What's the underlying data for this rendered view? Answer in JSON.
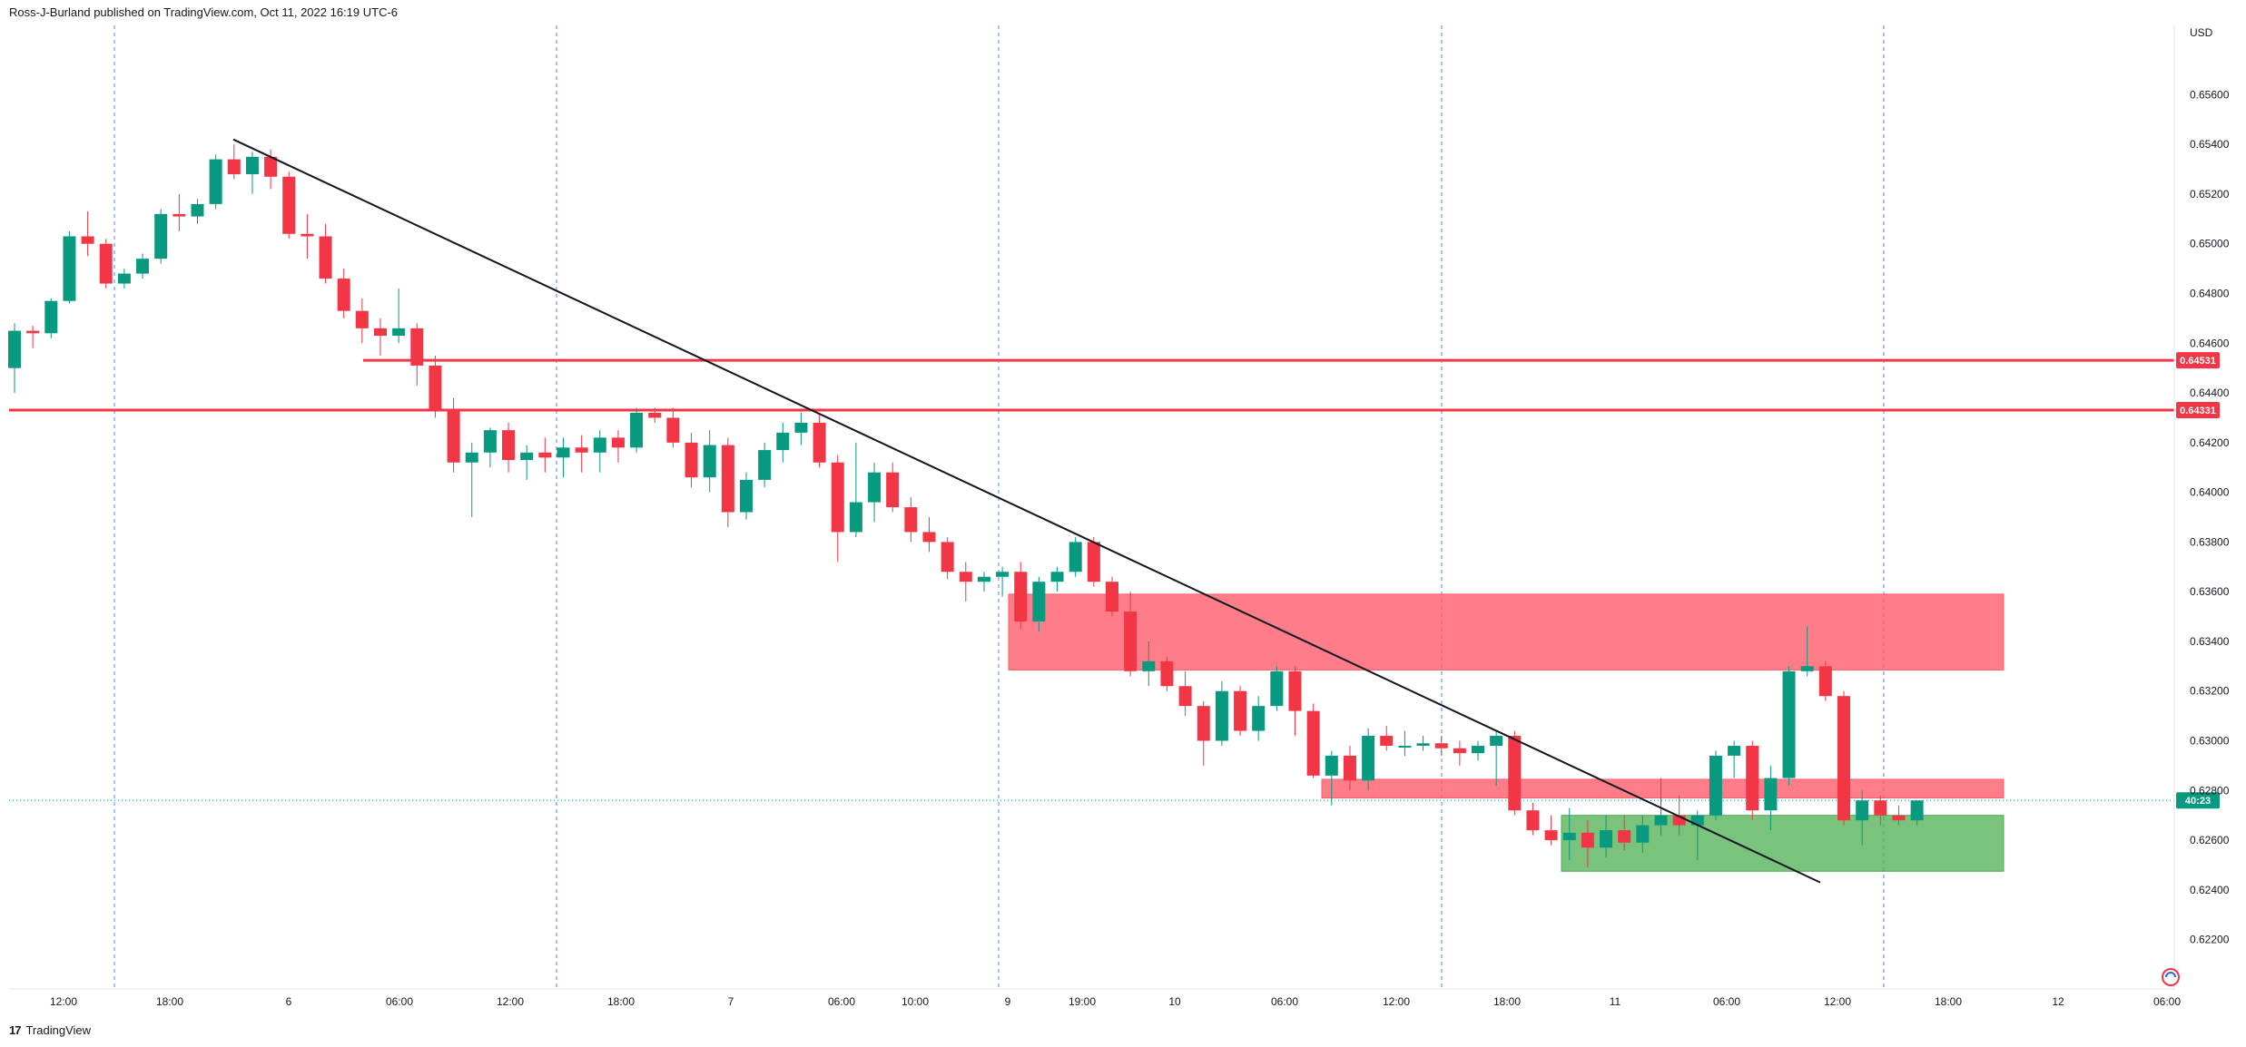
{
  "header": {
    "published": "Ross-J-Burland published on TradingView.com, Oct 11, 2022 16:19 UTC-6"
  },
  "footer": {
    "brand": "TradingView",
    "logo_icon": "tradingview-logo-icon"
  },
  "settings_icon": "chart-settings-icon",
  "colors": {
    "up": "#089981",
    "down": "#f23645",
    "axis_text": "#131722",
    "session_line": "#2962ff",
    "trendline": "#131722",
    "level": "#f23645",
    "supply_zone": "#ff5c6c",
    "demand_zone": "#4caf50"
  },
  "chart_data": {
    "type": "candlestick",
    "currency": "USD",
    "ylim": [
      0.621,
      0.657
    ],
    "y_ticks": [
      "0.65600",
      "0.65400",
      "0.65200",
      "0.65000",
      "0.64800",
      "0.64600",
      "0.64400",
      "0.64200",
      "0.64000",
      "0.63800",
      "0.63600",
      "0.63400",
      "0.63200",
      "0.63000",
      "0.62800",
      "0.62600",
      "0.62400",
      "0.62200"
    ],
    "x_ticks": [
      "12:00",
      "18:00",
      "6",
      "06:00",
      "12:00",
      "18:00",
      "7",
      "06:00",
      "10:00",
      "9",
      "19:00",
      "10",
      "06:00",
      "12:00",
      "18:00",
      "11",
      "06:00",
      "12:00",
      "18:00",
      "12",
      "06:00"
    ],
    "horizontal_levels": [
      {
        "label": "0.64531",
        "value": 0.64531
      },
      {
        "label": "0.64331",
        "value": 0.64331
      }
    ],
    "current_price": {
      "value": 0.6276,
      "label": "40:23"
    },
    "zones": [
      {
        "kind": "supply",
        "y_top": 0.6359,
        "y_bottom": 0.63285
      },
      {
        "kind": "resistance",
        "y_top": 0.62845,
        "y_bottom": 0.6277
      },
      {
        "kind": "demand",
        "y_top": 0.627,
        "y_bottom": 0.62475
      }
    ],
    "trendline": {
      "from": [
        0.63,
        0.6542
      ],
      "to": [
        0.635,
        0.6243
      ]
    },
    "candles": [
      [
        0.645,
        0.6468,
        0.644,
        0.6465
      ],
      [
        0.6465,
        0.6467,
        0.6458,
        0.6464
      ],
      [
        0.6464,
        0.6478,
        0.6462,
        0.6477
      ],
      [
        0.6477,
        0.6505,
        0.6476,
        0.6503
      ],
      [
        0.6503,
        0.6513,
        0.6495,
        0.65
      ],
      [
        0.65,
        0.6502,
        0.6482,
        0.6484
      ],
      [
        0.6484,
        0.649,
        0.6482,
        0.6488
      ],
      [
        0.6488,
        0.6496,
        0.6486,
        0.6494
      ],
      [
        0.6494,
        0.6514,
        0.6492,
        0.6512
      ],
      [
        0.6512,
        0.652,
        0.6505,
        0.6511
      ],
      [
        0.6511,
        0.6518,
        0.6508,
        0.6516
      ],
      [
        0.6516,
        0.6536,
        0.6514,
        0.6534
      ],
      [
        0.6534,
        0.654,
        0.6526,
        0.6528
      ],
      [
        0.6528,
        0.6537,
        0.652,
        0.6535
      ],
      [
        0.6535,
        0.6538,
        0.6522,
        0.6527
      ],
      [
        0.6527,
        0.6529,
        0.6502,
        0.6504
      ],
      [
        0.6504,
        0.6512,
        0.6494,
        0.6503
      ],
      [
        0.6503,
        0.6508,
        0.6484,
        0.6486
      ],
      [
        0.6486,
        0.649,
        0.647,
        0.6473
      ],
      [
        0.6473,
        0.6478,
        0.646,
        0.6466
      ],
      [
        0.6466,
        0.647,
        0.6455,
        0.6463
      ],
      [
        0.6463,
        0.6482,
        0.646,
        0.6466
      ],
      [
        0.6466,
        0.6468,
        0.6443,
        0.6451
      ],
      [
        0.6451,
        0.6455,
        0.643,
        0.6433
      ],
      [
        0.6433,
        0.6438,
        0.6408,
        0.6412
      ],
      [
        0.6412,
        0.642,
        0.639,
        0.6416
      ],
      [
        0.6416,
        0.6426,
        0.641,
        0.6425
      ],
      [
        0.6425,
        0.6428,
        0.6408,
        0.6413
      ],
      [
        0.6413,
        0.6419,
        0.6405,
        0.6416
      ],
      [
        0.6416,
        0.6422,
        0.6408,
        0.6414
      ],
      [
        0.6414,
        0.6422,
        0.6406,
        0.6418
      ],
      [
        0.6418,
        0.6423,
        0.6408,
        0.6416
      ],
      [
        0.6416,
        0.6425,
        0.6408,
        0.6422
      ],
      [
        0.6422,
        0.6425,
        0.6412,
        0.6418
      ],
      [
        0.6418,
        0.6434,
        0.6416,
        0.6432
      ],
      [
        0.6432,
        0.6434,
        0.6428,
        0.643
      ],
      [
        0.643,
        0.6434,
        0.6418,
        0.642
      ],
      [
        0.642,
        0.6424,
        0.6402,
        0.6406
      ],
      [
        0.6406,
        0.6425,
        0.64,
        0.6419
      ],
      [
        0.6419,
        0.6422,
        0.6386,
        0.6392
      ],
      [
        0.6392,
        0.6408,
        0.6389,
        0.6405
      ],
      [
        0.6405,
        0.642,
        0.6402,
        0.6417
      ],
      [
        0.6417,
        0.6428,
        0.6412,
        0.6424
      ],
      [
        0.6424,
        0.6432,
        0.6419,
        0.6428
      ],
      [
        0.6428,
        0.6432,
        0.641,
        0.6412
      ],
      [
        0.6412,
        0.6415,
        0.6372,
        0.6384
      ],
      [
        0.6384,
        0.642,
        0.6382,
        0.6396
      ],
      [
        0.6396,
        0.6412,
        0.6388,
        0.6408
      ],
      [
        0.6408,
        0.6412,
        0.6392,
        0.6394
      ],
      [
        0.6394,
        0.6398,
        0.638,
        0.6384
      ],
      [
        0.6384,
        0.639,
        0.6376,
        0.638
      ],
      [
        0.638,
        0.6382,
        0.6365,
        0.6368
      ],
      [
        0.6368,
        0.6372,
        0.6356,
        0.6364
      ],
      [
        0.6364,
        0.6368,
        0.636,
        0.6366
      ],
      [
        0.6366,
        0.637,
        0.6358,
        0.6368
      ],
      [
        0.6368,
        0.6372,
        0.6345,
        0.6348
      ],
      [
        0.6348,
        0.6366,
        0.6344,
        0.6364
      ],
      [
        0.6364,
        0.637,
        0.636,
        0.6368
      ],
      [
        0.6368,
        0.6382,
        0.6366,
        0.638
      ],
      [
        0.638,
        0.6382,
        0.6362,
        0.6364
      ],
      [
        0.6364,
        0.6366,
        0.635,
        0.6352
      ],
      [
        0.6352,
        0.636,
        0.6326,
        0.6328
      ],
      [
        0.6328,
        0.634,
        0.6322,
        0.6332
      ],
      [
        0.6332,
        0.6334,
        0.632,
        0.6322
      ],
      [
        0.6322,
        0.6328,
        0.631,
        0.6314
      ],
      [
        0.6314,
        0.6316,
        0.629,
        0.63
      ],
      [
        0.63,
        0.6324,
        0.6298,
        0.632
      ],
      [
        0.632,
        0.6322,
        0.6302,
        0.6304
      ],
      [
        0.6304,
        0.6318,
        0.63,
        0.6314
      ],
      [
        0.6314,
        0.633,
        0.6312,
        0.6328
      ],
      [
        0.6328,
        0.633,
        0.6302,
        0.6312
      ],
      [
        0.6312,
        0.6315,
        0.6285,
        0.6286
      ],
      [
        0.6286,
        0.6296,
        0.6274,
        0.6294
      ],
      [
        0.6294,
        0.6298,
        0.628,
        0.6284
      ],
      [
        0.6284,
        0.6305,
        0.628,
        0.6302
      ],
      [
        0.6302,
        0.6306,
        0.6296,
        0.6298
      ],
      [
        0.6298,
        0.6304,
        0.6294,
        0.6298
      ],
      [
        0.6298,
        0.6302,
        0.6296,
        0.6299
      ],
      [
        0.6299,
        0.6302,
        0.6294,
        0.6297
      ],
      [
        0.6297,
        0.63,
        0.629,
        0.6295
      ],
      [
        0.6295,
        0.63,
        0.6292,
        0.6298
      ],
      [
        0.6298,
        0.6304,
        0.6282,
        0.6302
      ],
      [
        0.6302,
        0.6304,
        0.627,
        0.6272
      ],
      [
        0.6272,
        0.6275,
        0.6262,
        0.6264
      ],
      [
        0.6264,
        0.627,
        0.6258,
        0.626
      ],
      [
        0.626,
        0.6273,
        0.6252,
        0.6263
      ],
      [
        0.6263,
        0.6268,
        0.6249,
        0.6257
      ],
      [
        0.6257,
        0.627,
        0.6253,
        0.6264
      ],
      [
        0.6264,
        0.627,
        0.6256,
        0.6259
      ],
      [
        0.6259,
        0.627,
        0.6255,
        0.6266
      ],
      [
        0.6266,
        0.6285,
        0.6262,
        0.627
      ],
      [
        0.627,
        0.6278,
        0.6262,
        0.6266
      ],
      [
        0.6266,
        0.6272,
        0.6252,
        0.627
      ],
      [
        0.627,
        0.6296,
        0.6268,
        0.6294
      ],
      [
        0.6294,
        0.63,
        0.6285,
        0.6298
      ],
      [
        0.6298,
        0.63,
        0.6268,
        0.6272
      ],
      [
        0.6272,
        0.629,
        0.6264,
        0.6285
      ],
      [
        0.6285,
        0.633,
        0.6282,
        0.6328
      ],
      [
        0.6328,
        0.6346,
        0.6326,
        0.633
      ],
      [
        0.633,
        0.6332,
        0.6316,
        0.6318
      ],
      [
        0.6318,
        0.632,
        0.6266,
        0.6268
      ],
      [
        0.6268,
        0.628,
        0.6258,
        0.6276
      ],
      [
        0.6276,
        0.6278,
        0.6266,
        0.627
      ],
      [
        0.627,
        0.6274,
        0.6266,
        0.6268
      ],
      [
        0.6268,
        0.6276,
        0.6266,
        0.6276
      ]
    ]
  }
}
